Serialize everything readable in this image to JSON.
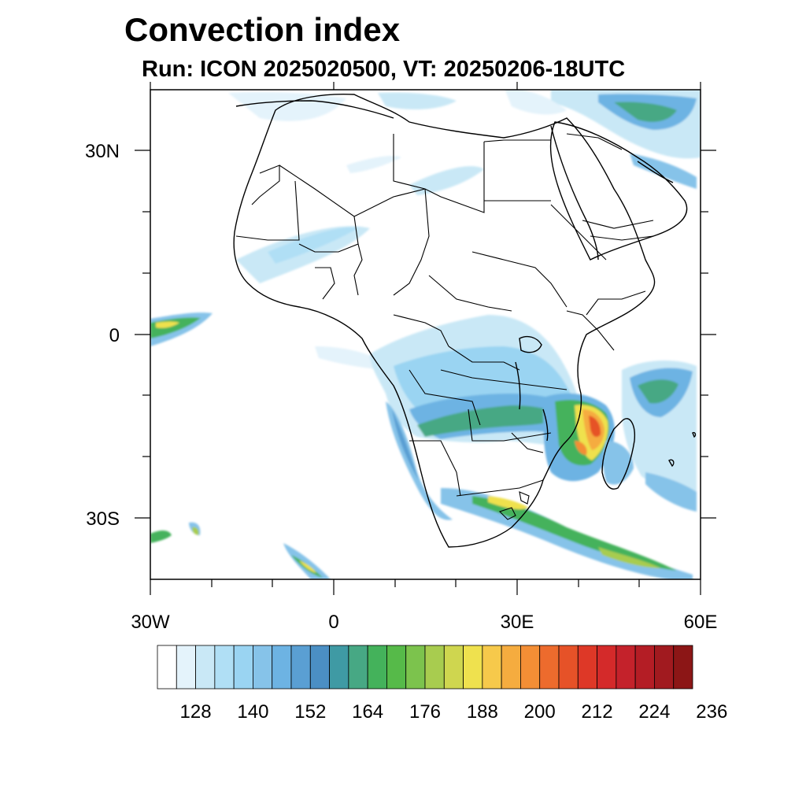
{
  "title": "Convection index",
  "subtitle": "Run: ICON 2025020500,  VT: 20250206-18UTC",
  "map": {
    "region": "Africa",
    "lon_range": [
      -30,
      60
    ],
    "lat_range": [
      -40,
      40
    ],
    "x_tick_labels": [
      "30W",
      "0",
      "30E",
      "60E"
    ],
    "y_tick_labels": [
      "30N",
      "0",
      "30S"
    ]
  },
  "colorbar": {
    "labels": [
      "128",
      "140",
      "152",
      "164",
      "176",
      "188",
      "200",
      "212",
      "224",
      "236"
    ],
    "colors": [
      "#ffffff",
      "#e4f3fb",
      "#c9e8f6",
      "#b0dff5",
      "#9ad4f2",
      "#86c3e9",
      "#6db3e3",
      "#5a9fd3",
      "#4b8fc4",
      "#3f9aa4",
      "#47a884",
      "#44b25b",
      "#56ba49",
      "#7cc34d",
      "#a8cc4f",
      "#cfd64f",
      "#efe14e",
      "#f6c94b",
      "#f5ac3f",
      "#f38e35",
      "#ed6b2d",
      "#e65228",
      "#de3827",
      "#d42a2a",
      "#c4222b",
      "#b41d25",
      "#a11a1f",
      "#8c1616"
    ]
  },
  "chart_data": {
    "type": "heatmap",
    "title": "Convection index",
    "subtitle": "Run: ICON 2025020500,  VT: 20250206-18UTC",
    "x": [
      "30W",
      "0",
      "30E",
      "60E"
    ],
    "y": [
      "30N",
      "0",
      "30S"
    ],
    "xlim": [
      -30,
      60
    ],
    "ylim": [
      -40,
      40
    ],
    "colorbar_levels": [
      128,
      140,
      152,
      164,
      176,
      188,
      200,
      212,
      224,
      236
    ],
    "regions": [
      {
        "lon": 42,
        "lat": -15,
        "level": 212
      },
      {
        "lon": 40,
        "lat": -18,
        "level": 200
      },
      {
        "lon": 28,
        "lat": -27,
        "level": 176
      },
      {
        "lon": 44,
        "lat": -35,
        "level": 164
      },
      {
        "lon": 22,
        "lat": -14,
        "level": 152
      },
      {
        "lon": 52,
        "lat": -7,
        "level": 164
      },
      {
        "lon": -26,
        "lat": 1,
        "level": 176
      },
      {
        "lon": -4,
        "lat": -37,
        "level": 164
      },
      {
        "lon": 55,
        "lat": 36,
        "level": 152
      }
    ]
  }
}
